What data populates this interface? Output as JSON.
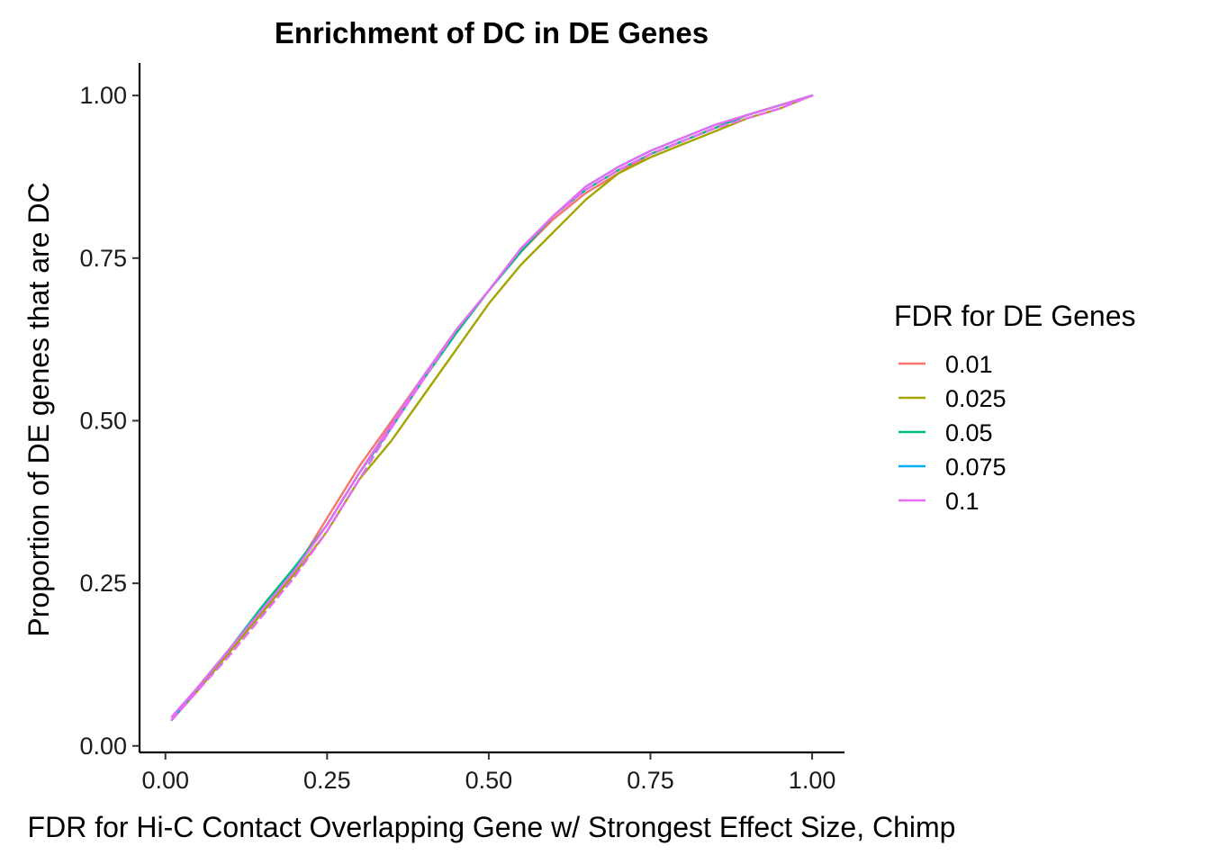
{
  "chart_data": {
    "type": "line",
    "title": "Enrichment of DC in DE Genes",
    "xlabel": "FDR for Hi-C Contact Overlapping Gene w/ Strongest Effect Size, Chimp",
    "ylabel": "Proportion of DE genes that are DC",
    "xlim": [
      -0.04,
      1.05
    ],
    "ylim": [
      -0.01,
      1.05
    ],
    "x_ticks": [
      "0.00",
      "0.25",
      "0.50",
      "0.75",
      "1.00"
    ],
    "y_ticks": [
      "0.00",
      "0.25",
      "0.50",
      "0.75",
      "1.00"
    ],
    "legend": {
      "title": "FDR for DE Genes",
      "position": "right"
    },
    "x": [
      0.01,
      0.05,
      0.1,
      0.15,
      0.2,
      0.25,
      0.3,
      0.35,
      0.4,
      0.45,
      0.5,
      0.55,
      0.6,
      0.65,
      0.7,
      0.75,
      0.8,
      0.85,
      0.9,
      0.95,
      1.0
    ],
    "series": [
      {
        "name": "0.01",
        "color": "#F8766D",
        "dash": false,
        "values": [
          0.04,
          0.09,
          0.15,
          0.21,
          0.27,
          0.35,
          0.43,
          0.5,
          0.57,
          0.64,
          0.7,
          0.76,
          0.81,
          0.85,
          0.88,
          0.91,
          0.93,
          0.95,
          0.97,
          0.985,
          1.0
        ]
      },
      {
        "name": "0.025",
        "color": "#A3A500",
        "dash": false,
        "values": [
          0.04,
          0.085,
          0.145,
          0.205,
          0.265,
          0.33,
          0.41,
          0.47,
          0.54,
          0.61,
          0.68,
          0.74,
          0.79,
          0.84,
          0.88,
          0.905,
          0.925,
          0.945,
          0.965,
          0.98,
          1.0
        ]
      },
      {
        "name": "0.05",
        "color": "#00BF7D",
        "dash": false,
        "values": [
          0.04,
          0.09,
          0.15,
          0.215,
          0.275,
          0.34,
          0.42,
          0.49,
          0.565,
          0.635,
          0.7,
          0.76,
          0.815,
          0.855,
          0.885,
          0.91,
          0.93,
          0.95,
          0.97,
          0.985,
          1.0
        ]
      },
      {
        "name": "0.075",
        "color": "#00B0F6",
        "dash": false,
        "values": [
          0.04,
          0.09,
          0.15,
          0.21,
          0.27,
          0.34,
          0.42,
          0.495,
          0.57,
          0.64,
          0.7,
          0.765,
          0.815,
          0.86,
          0.89,
          0.915,
          0.935,
          0.955,
          0.97,
          0.985,
          1.0
        ]
      },
      {
        "name": "0.1",
        "color": "#E76BF3",
        "dash": false,
        "values": [
          0.045,
          0.09,
          0.15,
          0.21,
          0.27,
          0.34,
          0.42,
          0.495,
          0.57,
          0.64,
          0.7,
          0.765,
          0.815,
          0.86,
          0.89,
          0.915,
          0.935,
          0.955,
          0.97,
          0.985,
          1.0
        ]
      },
      {
        "name": "",
        "color": "#E76BF3",
        "dash": true,
        "values": [
          0.04,
          0.085,
          0.14,
          0.2,
          0.26,
          0.33,
          0.41,
          0.49,
          0.565,
          0.64,
          0.7,
          0.765,
          0.815,
          0.855,
          0.885,
          0.91,
          0.93,
          0.95,
          0.965,
          0.98,
          1.0
        ]
      }
    ]
  }
}
